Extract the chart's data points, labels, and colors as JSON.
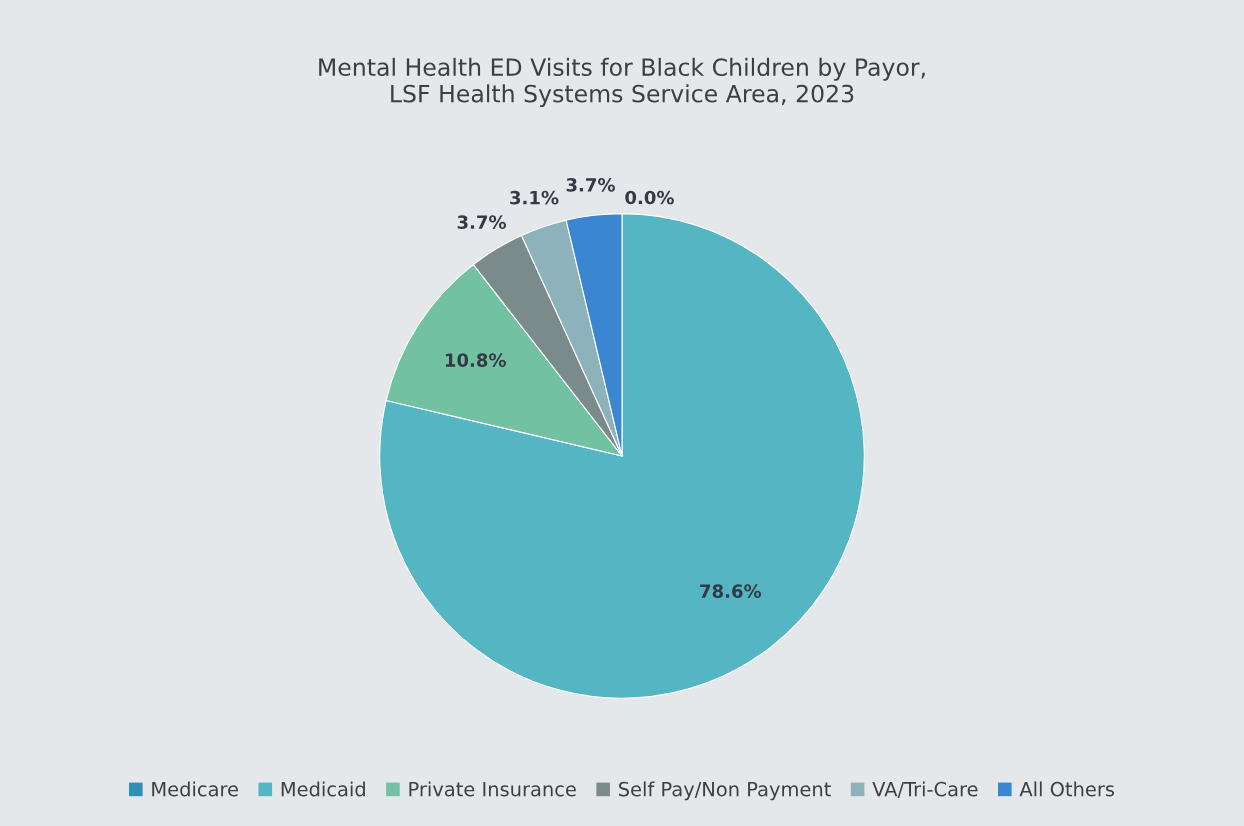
{
  "chart_data": {
    "type": "pie",
    "title": "Mental Health ED Visits for Black Children by Payor,\nLSF Health Systems Service Area, 2023",
    "categories": [
      "Medicare",
      "Medicaid",
      "Private Insurance",
      "Self Pay/Non Payment",
      "VA/Tri-Care",
      "All Others"
    ],
    "values": [
      0.0,
      78.6,
      10.8,
      3.7,
      3.1,
      3.7
    ],
    "colors": [
      "#2f8fb5",
      "#53b6c2",
      "#72c1a3",
      "#7b8b8b",
      "#8db2bc",
      "#3a86d0"
    ],
    "value_labels": [
      "0.0%",
      "78.6%",
      "10.8%",
      "3.7%",
      "3.1%",
      "3.7%"
    ],
    "legend": "bottom"
  }
}
